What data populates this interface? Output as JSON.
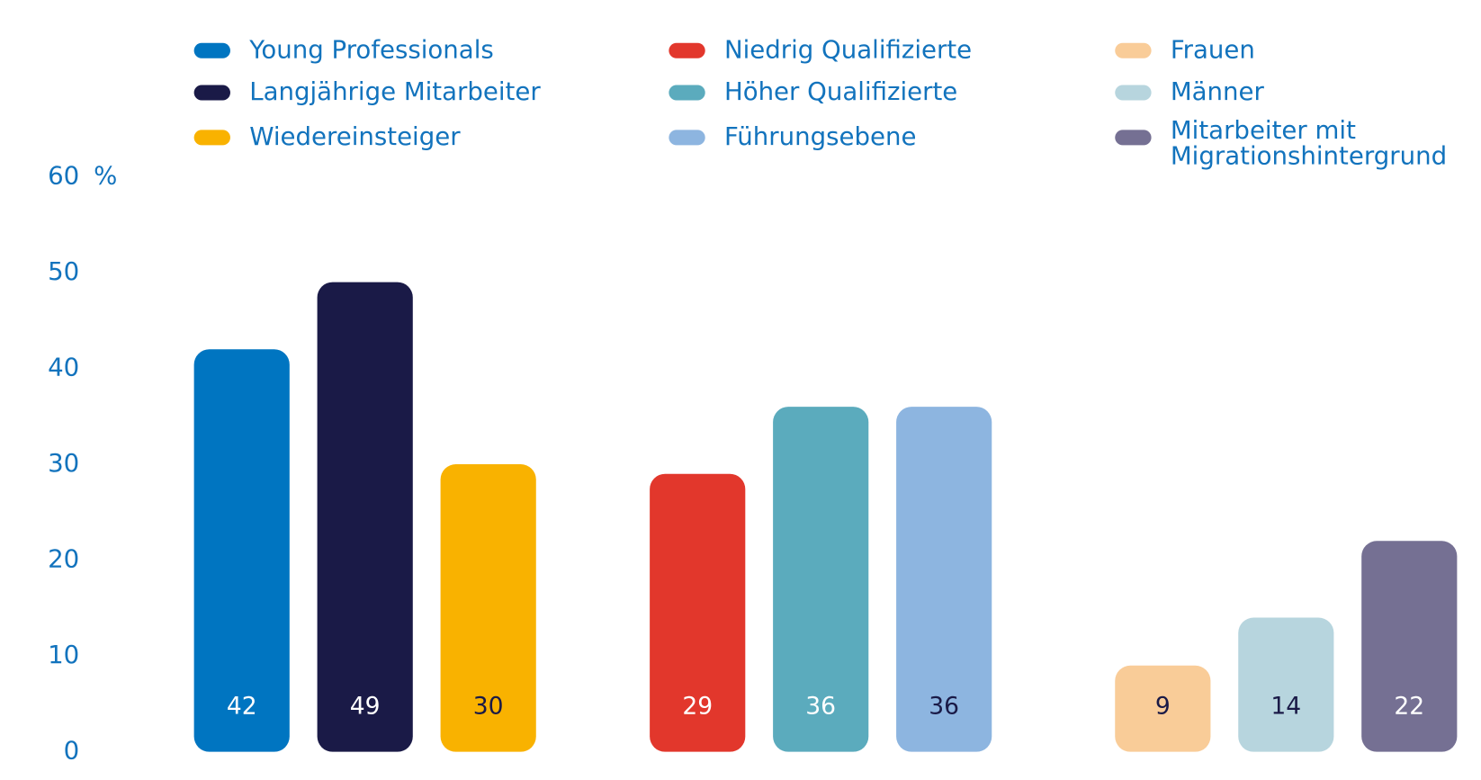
{
  "chart_data": {
    "type": "bar",
    "y_unit": "%",
    "ylim": [
      0,
      60
    ],
    "yticks": [
      0,
      10,
      20,
      30,
      40,
      50,
      60
    ],
    "series": [
      {
        "name": "Young Professionals",
        "color": "#0075c1",
        "label_color": "#ffffff",
        "values": [
          42
        ]
      },
      {
        "name": "Langjährige Mitarbeiter",
        "color": "#1a1a47",
        "label_color": "#ffffff",
        "values": [
          49
        ]
      },
      {
        "name": "Wiedereinsteiger",
        "color": "#f9b200",
        "label_color": "#1a1a47",
        "values": [
          30
        ]
      },
      {
        "name": "Niedrig Qualifizierte",
        "color": "#e2372c",
        "label_color": "#ffffff",
        "values": [
          29
        ]
      },
      {
        "name": "Höher Qualifizierte",
        "color": "#5babbd",
        "label_color": "#ffffff",
        "values": [
          36
        ]
      },
      {
        "name": "Führungsebene",
        "color": "#8db5e0",
        "label_color": "#1a1a47",
        "values": [
          36
        ]
      },
      {
        "name": "Frauen",
        "color": "#f9cc98",
        "label_color": "#1a1a47",
        "values": [
          9
        ]
      },
      {
        "name": "Männer",
        "color": "#b7d5de",
        "label_color": "#1a1a47",
        "values": [
          14
        ]
      },
      {
        "name": "Mitarbeiter mit Migrationshintergrund",
        "color": "#757093",
        "label_color": "#ffffff",
        "values": [
          22
        ]
      }
    ]
  }
}
